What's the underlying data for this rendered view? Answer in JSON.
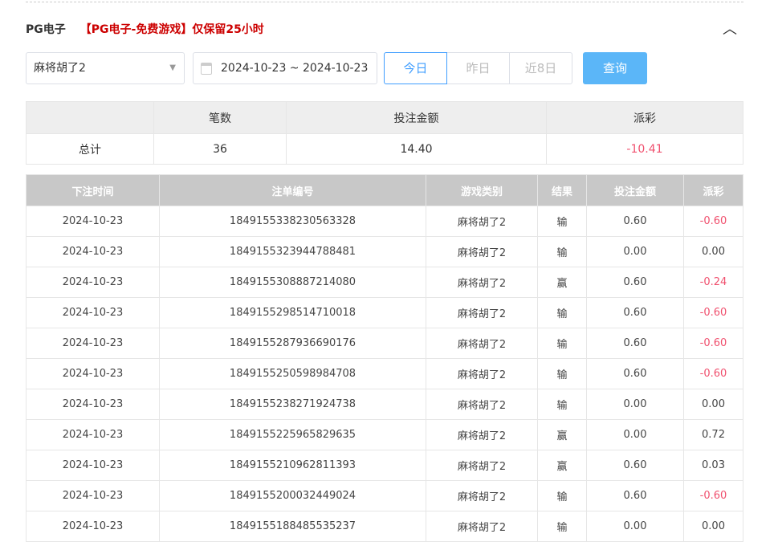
{
  "header": {
    "title": "PG电子",
    "notice": "【PG电子-免费游戏】仅保留25小时"
  },
  "filters": {
    "game": "麻将胡了2",
    "date_range": "2024-10-23 ~ 2024-10-23",
    "quick": [
      "今日",
      "昨日",
      "近8日"
    ],
    "active_quick": "今日",
    "query": "查询"
  },
  "summary": {
    "headers": [
      "",
      "笔数",
      "投注金额",
      "派彩"
    ],
    "row": [
      "总计",
      "36",
      "14.40",
      "-10.41"
    ]
  },
  "table": {
    "headers": [
      "下注时间",
      "注单编号",
      "游戏类别",
      "结果",
      "投注金额",
      "派彩"
    ],
    "rows": [
      [
        "2024-10-23",
        "1849155338230563328",
        "麻将胡了2",
        "输",
        "0.60",
        "-0.60"
      ],
      [
        "2024-10-23",
        "1849155323944788481",
        "麻将胡了2",
        "输",
        "0.00",
        "0.00"
      ],
      [
        "2024-10-23",
        "1849155308887214080",
        "麻将胡了2",
        "赢",
        "0.60",
        "-0.24"
      ],
      [
        "2024-10-23",
        "1849155298514710018",
        "麻将胡了2",
        "输",
        "0.60",
        "-0.60"
      ],
      [
        "2024-10-23",
        "1849155287936690176",
        "麻将胡了2",
        "输",
        "0.60",
        "-0.60"
      ],
      [
        "2024-10-23",
        "1849155250598984708",
        "麻将胡了2",
        "输",
        "0.60",
        "-0.60"
      ],
      [
        "2024-10-23",
        "1849155238271924738",
        "麻将胡了2",
        "输",
        "0.00",
        "0.00"
      ],
      [
        "2024-10-23",
        "1849155225965829635",
        "麻将胡了2",
        "赢",
        "0.00",
        "0.72"
      ],
      [
        "2024-10-23",
        "1849155210962811393",
        "麻将胡了2",
        "赢",
        "0.60",
        "0.03"
      ],
      [
        "2024-10-23",
        "1849155200032449024",
        "麻将胡了2",
        "输",
        "0.60",
        "-0.60"
      ],
      [
        "2024-10-23",
        "1849155188485535237",
        "麻将胡了2",
        "输",
        "0.00",
        "0.00"
      ]
    ]
  },
  "colors": {
    "negative": "#f0506e",
    "accent": "#409eff",
    "query_button": "#5bb6f8",
    "notice": "#cc0000"
  }
}
